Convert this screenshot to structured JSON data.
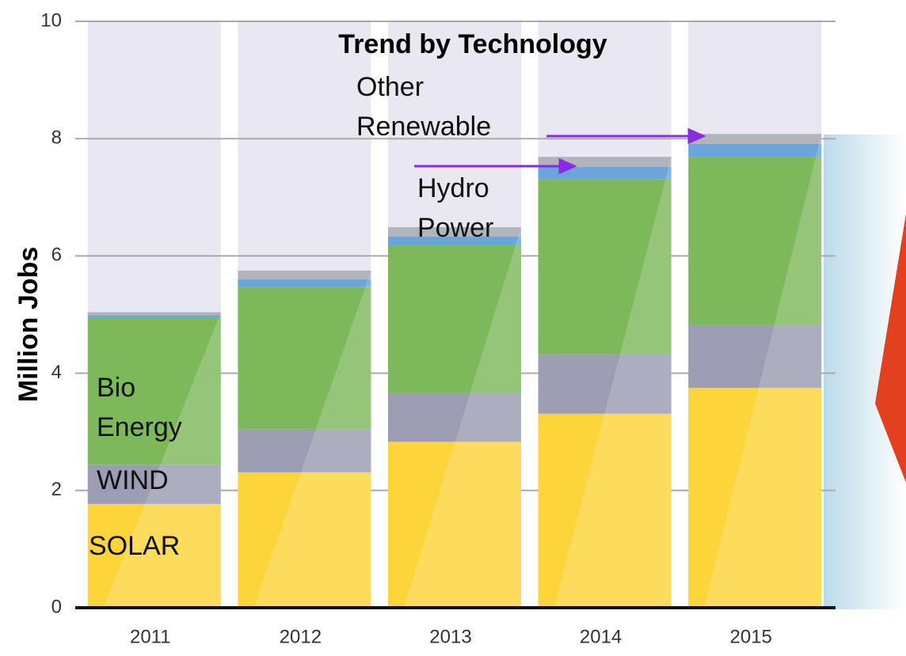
{
  "chart_data": {
    "type": "stacked_bar",
    "title": "Trend by Technology",
    "y_label": "Million Jobs",
    "categories": [
      "2011",
      "2012",
      "2013",
      "2014",
      "2015"
    ],
    "series": [
      {
        "name": "SOLAR",
        "color": "#fdd43a",
        "values": [
          1.77,
          2.31,
          2.83,
          3.31,
          3.75
        ]
      },
      {
        "name": "WIND",
        "color": "#9c9cb2",
        "values": [
          0.67,
          0.73,
          0.83,
          1.01,
          1.07
        ]
      },
      {
        "name": "Bio Energy",
        "color": "#7db95b",
        "values": [
          2.5,
          2.43,
          2.52,
          2.99,
          2.87
        ]
      },
      {
        "name": "Hydro Power",
        "color": "#6aa6dc",
        "values": [
          0.05,
          0.13,
          0.15,
          0.21,
          0.22
        ]
      },
      {
        "name": "Other Renewable",
        "color": "#b3b3bb",
        "values": [
          0.05,
          0.15,
          0.16,
          0.17,
          0.17
        ]
      }
    ],
    "ylim": [
      0,
      10
    ],
    "yticks": [
      0,
      2,
      4,
      6,
      8,
      10
    ],
    "grid": true
  }
}
